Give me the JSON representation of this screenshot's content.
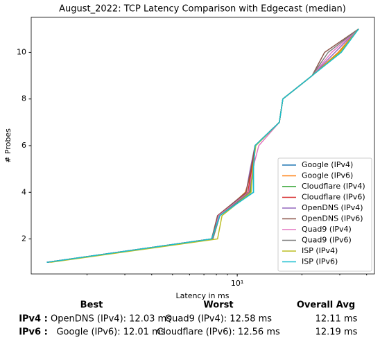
{
  "chart_data": {
    "type": "line",
    "title": "August_2022: TCP Latency Comparison with Edgecast (median)",
    "xlabel": "Latency in ms",
    "ylabel": "# Probes",
    "xscale": "log",
    "xlim": [
      1.1,
      43.5
    ],
    "ylim": [
      0.5,
      11.5
    ],
    "xticks": [
      {
        "value": 10,
        "label": "10¹"
      }
    ],
    "xminorticks": [
      2,
      3,
      4,
      5,
      6,
      7,
      8,
      9,
      20,
      30,
      40
    ],
    "yticks": [
      2,
      4,
      6,
      8,
      10
    ],
    "legend": "lower right",
    "series": [
      {
        "name": "Google (IPv4)",
        "color": "#1f77b4",
        "x": [
          1.3,
          7.6,
          8.2,
          11.9,
          11.9,
          12.1,
          15.7,
          16.3,
          22.3,
          30,
          36.7
        ],
        "values": [
          1,
          2,
          3,
          4,
          5,
          6,
          7,
          8,
          9,
          10,
          11
        ]
      },
      {
        "name": "Google (IPv6)",
        "color": "#ff7f0e",
        "x": [
          1.32,
          7.7,
          8.3,
          10.9,
          11.8,
          12.1,
          15.7,
          16.3,
          22.3,
          29.5,
          36.7
        ],
        "values": [
          1,
          2,
          3,
          4,
          5,
          6,
          7,
          8,
          9,
          10,
          11
        ]
      },
      {
        "name": "Cloudflare (IPv4)",
        "color": "#2ca02c",
        "x": [
          1.3,
          7.7,
          8.3,
          11.5,
          11.9,
          12.1,
          15.7,
          16.3,
          22.3,
          30,
          36.7
        ],
        "values": [
          1,
          2,
          3,
          4,
          5,
          6,
          7,
          8,
          9,
          10,
          11
        ]
      },
      {
        "name": "Cloudflare (IPv6)",
        "color": "#d62728",
        "x": [
          1.3,
          7.6,
          8.2,
          11.2,
          11.7,
          12.1,
          15.7,
          16.3,
          22.3,
          30,
          36.7
        ],
        "values": [
          1,
          2,
          3,
          4,
          5,
          6,
          7,
          8,
          9,
          10,
          11
        ]
      },
      {
        "name": "OpenDNS (IPv4)",
        "color": "#9467bd",
        "x": [
          1.3,
          7.6,
          8.2,
          11.0,
          11.5,
          12.1,
          15.7,
          16.3,
          22.3,
          28.5,
          36.7
        ],
        "values": [
          1,
          2,
          3,
          4,
          5,
          6,
          7,
          8,
          9,
          10,
          11
        ]
      },
      {
        "name": "OpenDNS (IPv6)",
        "color": "#8c564b",
        "x": [
          1.3,
          7.6,
          8.1,
          11.0,
          11.6,
          12.1,
          15.7,
          16.3,
          22.3,
          25.5,
          36.7
        ],
        "values": [
          1,
          2,
          3,
          4,
          5,
          6,
          7,
          8,
          9,
          10,
          11
        ]
      },
      {
        "name": "Quad9 (IPv4)",
        "color": "#e377c2",
        "x": [
          1.3,
          7.7,
          8.2,
          11.3,
          11.8,
          12.6,
          15.7,
          16.3,
          22.3,
          27.5,
          36.7
        ],
        "values": [
          1,
          2,
          3,
          4,
          5,
          6,
          7,
          8,
          9,
          10,
          11
        ]
      },
      {
        "name": "Quad9 (IPv6)",
        "color": "#7f7f7f",
        "x": [
          1.3,
          7.7,
          8.3,
          11.4,
          11.9,
          12.1,
          15.7,
          16.3,
          22.3,
          26.5,
          36.7
        ],
        "values": [
          1,
          2,
          3,
          4,
          5,
          6,
          7,
          8,
          9,
          10,
          11
        ]
      },
      {
        "name": "ISP (IPv4)",
        "color": "#bcbd22",
        "x": [
          1.35,
          8.1,
          8.5,
          11.6,
          11.8,
          12.2,
          15.7,
          16.3,
          22.3,
          30,
          36.7
        ],
        "values": [
          1,
          2,
          3,
          4,
          5,
          6,
          7,
          8,
          9,
          10,
          11
        ]
      },
      {
        "name": "ISP (IPv6)",
        "color": "#17becf",
        "x": [
          1.3,
          7.6,
          8.3,
          11.9,
          11.9,
          12.1,
          15.7,
          16.3,
          22.3,
          30.5,
          36.7
        ],
        "values": [
          1,
          2,
          3,
          4,
          5,
          6,
          7,
          8,
          9,
          10,
          11
        ]
      }
    ]
  },
  "summary": {
    "headers": [
      "Best",
      "Worst",
      "Overall Avg"
    ],
    "rows": [
      {
        "label": "IPv4 :",
        "cells": [
          "OpenDNS (IPv4): 12.03 ms",
          "Quad9 (IPv4): 12.58 ms",
          "12.11 ms"
        ]
      },
      {
        "label": "IPv6 :",
        "cells": [
          "Google (IPv6): 12.01 ms",
          "Cloudflare (IPv6): 12.56 ms",
          "12.19 ms"
        ]
      }
    ]
  }
}
